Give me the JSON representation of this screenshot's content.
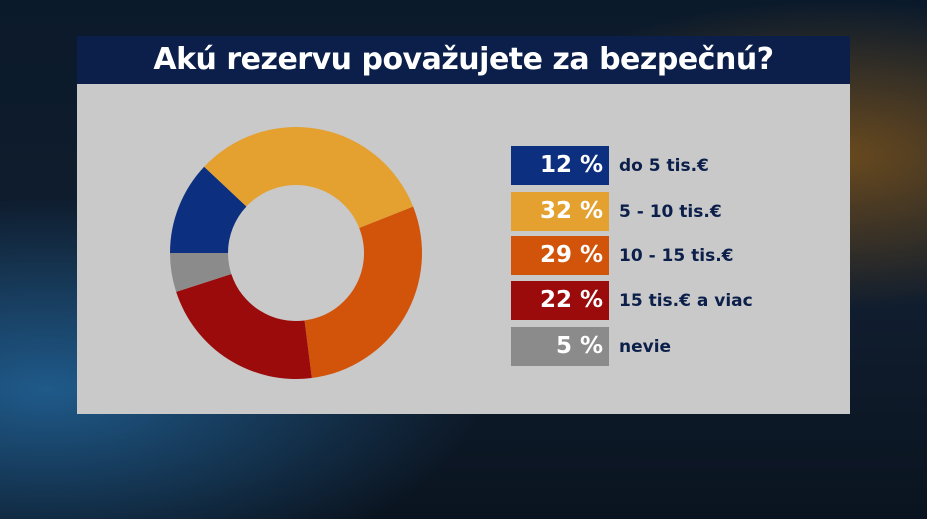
{
  "chart_data": {
    "type": "pie",
    "donut": true,
    "title": "Akú rezervu považujete za bezpečnú?",
    "categories": [
      "do 5 tis.€",
      "5 - 10 tis.€",
      "10 - 15 tis.€",
      "15 tis.€ a viac",
      "nevie"
    ],
    "values": [
      12,
      32,
      29,
      22,
      5
    ],
    "value_labels": [
      "12 %",
      "32 %",
      "29 %",
      "22 %",
      "5 %"
    ],
    "colors": [
      "#0d2f7f",
      "#e4a12f",
      "#d2540a",
      "#9b0b0b",
      "#8b8b8b"
    ],
    "legend_position": "right"
  }
}
